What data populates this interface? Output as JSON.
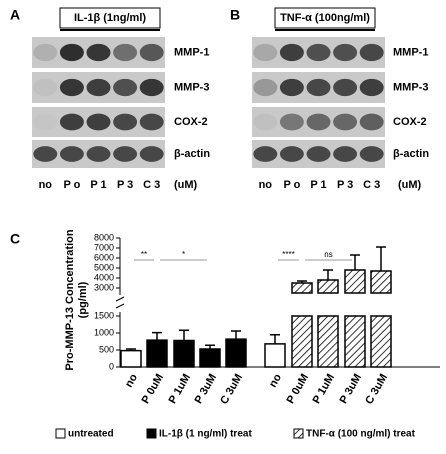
{
  "panel_a": {
    "letter": "A",
    "treatment": "IL-1β (1ng/ml)",
    "bands": [
      "MMP-1",
      "MMP-3",
      "COX-2",
      "β-actin"
    ],
    "lanes": [
      "no",
      "P o",
      "P 1",
      "P 3",
      "C 3"
    ],
    "unit": "(uM)"
  },
  "panel_b": {
    "letter": "B",
    "treatment": "TNF-α (100ng/ml)",
    "bands": [
      "MMP-1",
      "MMP-3",
      "COX-2",
      "β-actin"
    ],
    "lanes": [
      "no",
      "P o",
      "P 1",
      "P 3",
      "C 3"
    ],
    "unit": "(uM)"
  },
  "chart_data": {
    "type": "bar",
    "letter": "C",
    "ylabel": "Pro-MMP-13 Concentration",
    "ylabel_unit": "(pg/ml)",
    "categories": [
      "no",
      "P 0uM",
      "P 1uM",
      "P 3uM",
      "C 3uM",
      "no",
      "P 0uM",
      "P 1uM",
      "P 3uM",
      "C 3uM"
    ],
    "series": [
      {
        "name": "untreated",
        "color": "#ffffff",
        "values": [
          480,
          null,
          null,
          null,
          null,
          680,
          null,
          null,
          null,
          null
        ],
        "errors": [
          50,
          null,
          null,
          null,
          null,
          270,
          null,
          null,
          null,
          null
        ]
      },
      {
        "name": "IL-1β (1 ng/ml) treat",
        "color": "#000000",
        "values": [
          null,
          790,
          780,
          530,
          820,
          null,
          null,
          null,
          null,
          null
        ],
        "errors": [
          null,
          220,
          300,
          110,
          240,
          null,
          null,
          null,
          null,
          null
        ]
      },
      {
        "name": "TNF-α (100 ng/ml) treat",
        "color": "#ffffff",
        "pattern": "hatch",
        "values": [
          null,
          null,
          null,
          null,
          null,
          null,
          3500,
          3800,
          4800,
          4700
        ],
        "errors": [
          null,
          null,
          null,
          null,
          null,
          null,
          200,
          1000,
          1500,
          2400
        ]
      }
    ],
    "ylim": [
      0,
      1500
    ],
    "yticks": [
      0,
      500,
      1000,
      1500
    ],
    "y_upper_lim": [
      2500,
      8000
    ],
    "y_upper_ticks": [
      3000,
      4000,
      5000,
      6000,
      7000,
      8000
    ],
    "annotations": [
      "**",
      "*",
      "****",
      "ns"
    ]
  }
}
